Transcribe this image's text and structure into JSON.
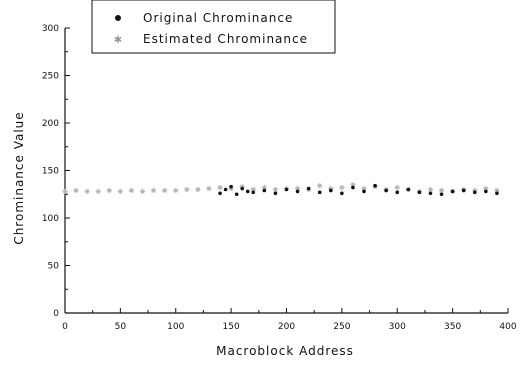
{
  "chart_data": {
    "type": "scatter",
    "title": "",
    "xlabel": "Macroblock Address",
    "ylabel": "Chrominance Value",
    "xlim": [
      0,
      400
    ],
    "ylim": [
      0,
      300
    ],
    "x_ticks": [
      "0",
      "50",
      "100",
      "150",
      "200",
      "250",
      "300",
      "350",
      "400"
    ],
    "y_ticks": [
      "0",
      "50",
      "100",
      "150",
      "200",
      "250",
      "300"
    ],
    "grid": false,
    "legend_position": "top-left",
    "series": [
      {
        "name": "Original Chrominance",
        "marker": "filled-circle",
        "color": "#111111",
        "x": [
          140,
          145,
          150,
          155,
          160,
          165,
          170,
          180,
          190,
          200,
          210,
          220,
          230,
          240,
          250,
          260,
          270,
          280,
          290,
          300,
          310,
          320,
          330,
          340,
          350,
          360,
          370,
          380,
          390
        ],
        "y": [
          126,
          130,
          133,
          125,
          131,
          128,
          127,
          129,
          126,
          130,
          128,
          131,
          127,
          129,
          126,
          132,
          128,
          134,
          129,
          127,
          130,
          127,
          126,
          125,
          128,
          129,
          127,
          128,
          126
        ]
      },
      {
        "name": "Estimated Chrominance",
        "marker": "star",
        "color": "#b4b4b4",
        "x": [
          0,
          10,
          20,
          30,
          40,
          50,
          60,
          70,
          80,
          90,
          100,
          110,
          120,
          130,
          140,
          150,
          160,
          170,
          180,
          190,
          200,
          210,
          220,
          230,
          240,
          250,
          260,
          270,
          280,
          290,
          300,
          310,
          320,
          330,
          340,
          350,
          360,
          370,
          380,
          390
        ],
        "y": [
          128,
          129,
          128,
          128,
          129,
          128,
          129,
          128,
          129,
          129,
          129,
          130,
          130,
          131,
          132,
          131,
          133,
          130,
          132,
          130,
          131,
          131,
          130,
          134,
          131,
          132,
          135,
          131,
          133,
          130,
          132,
          130,
          128,
          130,
          129,
          128,
          130,
          129,
          131,
          129
        ]
      }
    ]
  }
}
